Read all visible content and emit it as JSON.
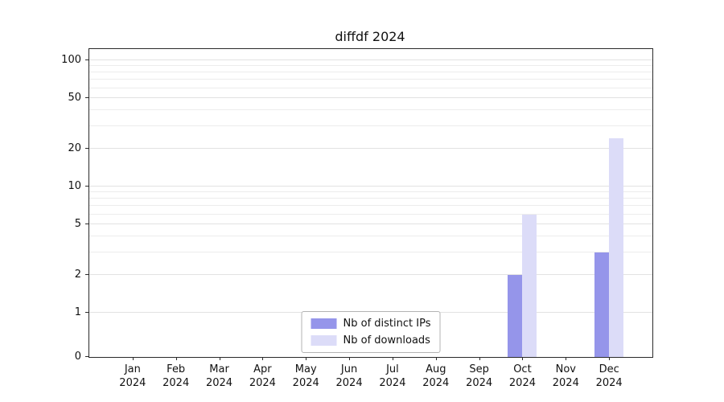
{
  "title": "diffdf 2024",
  "chart_data": {
    "type": "bar",
    "title": "diffdf 2024",
    "categories": [
      "Jan",
      "Feb",
      "Mar",
      "Apr",
      "May",
      "Jun",
      "Jul",
      "Aug",
      "Sep",
      "Oct",
      "Nov",
      "Dec"
    ],
    "year_label": "2024",
    "series": [
      {
        "name": "Nb of distinct IPs",
        "color": "#9595ea",
        "values": [
          0,
          0,
          0,
          0,
          0,
          0,
          0,
          0,
          0,
          2,
          0,
          3
        ]
      },
      {
        "name": "Nb of downloads",
        "color": "#dcdcf8",
        "values": [
          0,
          0,
          0,
          0,
          0,
          0,
          0,
          0,
          0,
          6,
          0,
          24
        ]
      }
    ],
    "y_major_ticks": [
      0,
      1,
      2,
      5,
      10,
      20,
      50,
      100
    ],
    "y_minor_ticks": [
      3,
      4,
      6,
      7,
      8,
      9,
      30,
      40,
      60,
      70,
      80,
      90
    ],
    "y_scale": "symlog",
    "ylim": [
      0,
      125
    ],
    "grid": true,
    "legend_position": "lower center (inside plot)"
  }
}
